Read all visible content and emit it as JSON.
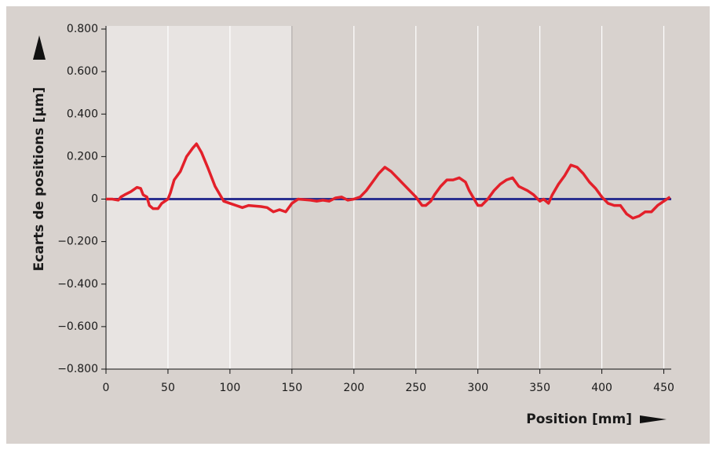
{
  "chart_data": {
    "type": "line",
    "y_label": "Ecarts de positions [µm]",
    "x_label": "Position [mm]",
    "x": [
      0,
      5,
      10,
      12,
      15,
      20,
      25,
      28,
      30,
      33,
      35,
      38,
      42,
      45,
      50,
      52,
      55,
      60,
      65,
      70,
      73,
      77,
      82,
      88,
      92,
      95,
      100,
      105,
      110,
      115,
      125,
      130,
      135,
      140,
      145,
      150,
      155,
      165,
      170,
      175,
      180,
      185,
      190,
      195,
      200,
      205,
      210,
      215,
      220,
      225,
      230,
      235,
      240,
      245,
      250,
      255,
      258,
      262,
      265,
      270,
      275,
      280,
      285,
      290,
      293,
      297,
      300,
      303,
      308,
      313,
      318,
      323,
      328,
      333,
      340,
      345,
      350,
      353,
      357,
      360,
      365,
      370,
      375,
      380,
      385,
      390,
      395,
      400,
      405,
      410,
      415,
      420,
      425,
      430,
      435,
      440,
      445,
      450,
      455
    ],
    "series": [
      {
        "color": "#e3202a",
        "values": [
          0,
          0,
          -0.005,
          0.01,
          0.02,
          0.035,
          0.055,
          0.05,
          0.02,
          0.01,
          -0.03,
          -0.045,
          -0.045,
          -0.02,
          0,
          0.03,
          0.09,
          0.13,
          0.2,
          0.24,
          0.26,
          0.22,
          0.15,
          0.06,
          0.02,
          -0.01,
          -0.02,
          -0.03,
          -0.04,
          -0.03,
          -0.035,
          -0.04,
          -0.06,
          -0.05,
          -0.06,
          -0.02,
          0,
          -0.005,
          -0.01,
          -0.005,
          -0.01,
          0.005,
          0.01,
          -0.005,
          0,
          0.01,
          0.04,
          0.08,
          0.12,
          0.15,
          0.13,
          0.1,
          0.07,
          0.04,
          0.01,
          -0.03,
          -0.03,
          -0.01,
          0.02,
          0.06,
          0.09,
          0.09,
          0.1,
          0.08,
          0.04,
          0,
          -0.03,
          -0.03,
          0,
          0.04,
          0.07,
          0.09,
          0.1,
          0.06,
          0.04,
          0.02,
          -0.01,
          0,
          -0.02,
          0.02,
          0.07,
          0.11,
          0.16,
          0.15,
          0.12,
          0.08,
          0.05,
          0.01,
          -0.02,
          -0.03,
          -0.03,
          -0.07,
          -0.09,
          -0.08,
          -0.06,
          -0.06,
          -0.03,
          -0.01,
          0.01
        ]
      }
    ],
    "xlim": [
      0,
      456
    ],
    "xticks": [
      0,
      50,
      100,
      150,
      200,
      250,
      300,
      350,
      400,
      450
    ],
    "ylim": [
      -0.8,
      0.8
    ],
    "yticks": [
      {
        "value": -0.8,
        "label": "−0.800"
      },
      {
        "value": -0.6,
        "label": "−0.600"
      },
      {
        "value": -0.4,
        "label": "−0.400"
      },
      {
        "value": -0.2,
        "label": "−0.200"
      },
      0,
      {
        "value": 0.2,
        "label": "0.200"
      },
      {
        "value": 0.4,
        "label": "0.400"
      },
      {
        "value": 0.6,
        "label": "0.600"
      },
      {
        "value": 0.8,
        "label": "0.800"
      }
    ],
    "x_grid": true,
    "zero_line_color": "#2b3090",
    "highlight_range": [
      0,
      150
    ]
  }
}
